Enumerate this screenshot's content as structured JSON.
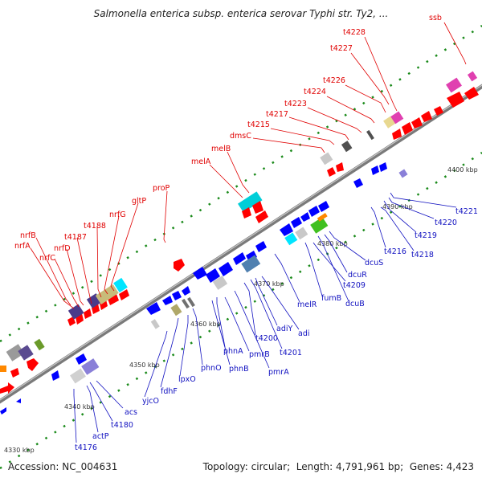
{
  "title": "Salmonella enterica subsp. enterica serovar Typhi str. Ty2, ...",
  "footer": {
    "accession_label": "Accession:",
    "accession": "NC_004631",
    "topology_label": "Topology:",
    "topology": "circular",
    "length_label": "Length:",
    "length": "4,791,961 bp",
    "genes_label": "Genes:",
    "genes": "4,423"
  },
  "colors": {
    "forward": "#ff0000",
    "reverse": "#0000ff",
    "backbone": "#8c8c8c",
    "tick": "#008800",
    "red_label": "#e00000",
    "blue_label": "#1010c0"
  },
  "kbp_labels": [
    "4330 kbp",
    "4340 kbp",
    "4350 kbp",
    "4360 kbp",
    "4370 kbp",
    "4380 kbp",
    "4390 kbp",
    "4400 kbp"
  ],
  "genes_top": [
    "nrfB",
    "nrfA",
    "nrfC",
    "nrfD",
    "t4187",
    "t4188",
    "nrfG",
    "gltP",
    "proP",
    "melA",
    "melB",
    "dmsC",
    "t4215",
    "t4217",
    "t4223",
    "t4224",
    "t4226",
    "t4227",
    "t4228",
    "ssb"
  ],
  "genes_bottom": [
    "t4176",
    "actP",
    "t4180",
    "acs",
    "yjcO",
    "fdhF",
    "lpxO",
    "phnO",
    "phnB",
    "phnA",
    "pmrB",
    "pmrA",
    "t4200",
    "t4201",
    "adiY",
    "adi",
    "melR",
    "fumB",
    "dcuB",
    "t4209",
    "dcuR",
    "dcuS",
    "t4216",
    "t4218",
    "t4219",
    "t4220",
    "t4221"
  ]
}
